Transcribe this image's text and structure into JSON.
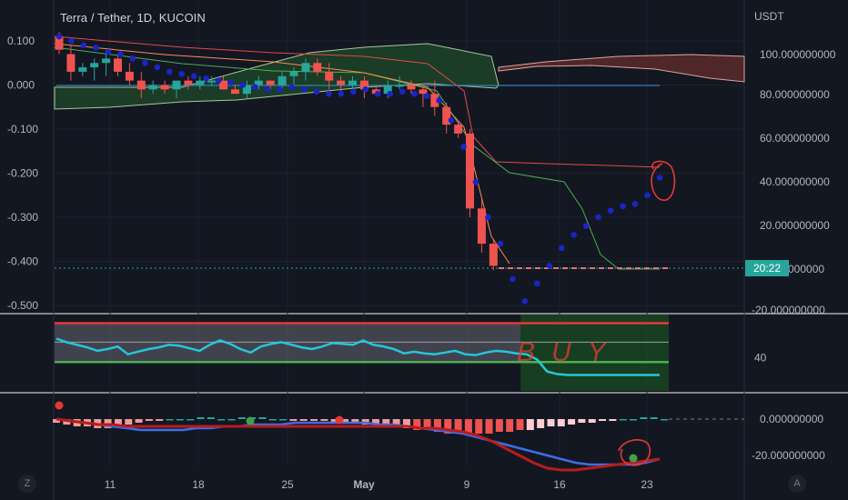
{
  "title": "Terra / Tether, 1D, KUCOIN",
  "currency": "USDT",
  "corner_left": "Z",
  "corner_right": "A",
  "last_label": "20:22",
  "buy_annotation": "BUY",
  "chart_data": [
    {
      "type": "candlestick",
      "title": "Terra / Tether, 1D, KUCOIN",
      "y_left_ticks": [
        "0.100",
        "0.000",
        "-0.100",
        "-0.200",
        "-0.300",
        "-0.400",
        "-0.500"
      ],
      "y_right_ticks": [
        "100.000000000",
        "80.000000000",
        "60.000000000",
        "40.000000000",
        "20.000000000",
        "-20.000000000"
      ],
      "x_ticks": [
        "11",
        "18",
        "25",
        "May",
        "9",
        "16",
        "23"
      ],
      "ohlc_left_scale": [
        [
          0.11,
          0.12,
          0.07,
          0.08
        ],
        [
          0.07,
          0.09,
          0.01,
          0.03
        ],
        [
          0.03,
          0.05,
          0.02,
          0.04
        ],
        [
          0.04,
          0.06,
          0.01,
          0.05
        ],
        [
          0.05,
          0.08,
          0.02,
          0.06
        ],
        [
          0.06,
          0.07,
          0.02,
          0.03
        ],
        [
          0.03,
          0.05,
          0.0,
          0.01
        ],
        [
          0.01,
          0.03,
          -0.03,
          -0.01
        ],
        [
          -0.01,
          0.01,
          -0.02,
          0.0
        ],
        [
          0.0,
          0.01,
          -0.02,
          -0.01
        ],
        [
          -0.01,
          0.01,
          -0.03,
          0.01
        ],
        [
          0.01,
          0.02,
          -0.01,
          0.0
        ],
        [
          0.0,
          0.02,
          -0.01,
          0.01
        ],
        [
          0.01,
          0.02,
          0.0,
          0.01
        ],
        [
          0.01,
          0.02,
          -0.01,
          -0.01
        ],
        [
          -0.01,
          0.0,
          -0.02,
          -0.02
        ],
        [
          -0.02,
          0.01,
          -0.03,
          0.0
        ],
        [
          0.0,
          0.02,
          -0.01,
          0.01
        ],
        [
          0.01,
          0.01,
          -0.01,
          0.0
        ],
        [
          0.0,
          0.03,
          -0.01,
          0.02
        ],
        [
          0.02,
          0.04,
          0.0,
          0.03
        ],
        [
          0.03,
          0.06,
          0.01,
          0.05
        ],
        [
          0.05,
          0.06,
          0.02,
          0.03
        ],
        [
          0.03,
          0.05,
          -0.01,
          0.01
        ],
        [
          0.01,
          0.02,
          -0.02,
          0.0
        ],
        [
          0.0,
          0.02,
          -0.02,
          0.01
        ],
        [
          0.01,
          0.02,
          -0.03,
          -0.01
        ],
        [
          -0.01,
          0.0,
          -0.02,
          -0.02
        ],
        [
          -0.02,
          0.01,
          -0.03,
          0.0
        ],
        [
          0.0,
          0.02,
          -0.01,
          0.0
        ],
        [
          0.0,
          0.01,
          -0.02,
          -0.01
        ],
        [
          -0.01,
          0.0,
          -0.05,
          -0.02
        ],
        [
          -0.02,
          0.01,
          -0.07,
          -0.05
        ],
        [
          -0.05,
          -0.04,
          -0.11,
          -0.09
        ],
        [
          -0.09,
          -0.08,
          -0.12,
          -0.11
        ],
        [
          -0.11,
          -0.1,
          -0.3,
          -0.28
        ],
        [
          -0.28,
          -0.26,
          -0.38,
          -0.36
        ],
        [
          -0.36,
          -0.35,
          -0.42,
          -0.41
        ]
      ],
      "psar_left_scale": [
        0.11,
        0.1,
        0.09,
        0.085,
        0.075,
        0.07,
        0.06,
        0.05,
        0.04,
        0.03,
        0.025,
        0.02,
        0.015,
        0.01,
        0.005,
        0.0,
        -0.005,
        -0.01,
        -0.01,
        -0.005,
        -0.01,
        -0.015,
        -0.02,
        -0.02,
        -0.015,
        -0.01,
        -0.02,
        -0.02,
        -0.015,
        -0.02,
        -0.025,
        -0.035,
        -0.08,
        -0.14,
        -0.22,
        -0.3,
        -0.36,
        -0.44,
        -0.49,
        -0.45,
        -0.41,
        -0.37,
        -0.34,
        -0.32,
        -0.3,
        -0.285,
        -0.275,
        -0.27,
        -0.25,
        -0.21
      ],
      "price_line_left_scale": -0.41
    },
    {
      "type": "line",
      "name_hint": "oscillator",
      "y_ticks": [
        "40"
      ],
      "bands": [
        80,
        35
      ],
      "values": [
        62,
        58,
        55,
        52,
        48,
        50,
        53,
        44,
        47,
        50,
        52,
        55,
        54,
        51,
        48,
        55,
        60,
        56,
        50,
        46,
        53,
        56,
        58,
        55,
        52,
        50,
        53,
        57,
        56,
        55,
        60,
        55,
        53,
        50,
        45,
        47,
        45,
        44,
        46,
        48,
        44,
        43,
        46,
        48,
        47,
        45,
        44,
        38,
        24,
        21,
        20,
        20,
        20,
        20,
        20,
        20,
        20,
        20,
        20,
        20
      ],
      "highlight_from_index": 45
    },
    {
      "type": "bar",
      "name_hint": "histogram",
      "y_ticks": [
        "0.000000000",
        "-20.000000000"
      ],
      "histogram": [
        -2,
        -3,
        -4,
        -4,
        -5,
        -5,
        -4,
        -3,
        -2,
        -1,
        -1,
        0,
        0,
        0,
        1,
        1,
        0,
        0,
        1,
        1,
        1,
        0,
        0,
        -1,
        -1,
        -1,
        -1,
        -2,
        -2,
        -2,
        -3,
        -3,
        -4,
        -4,
        -5,
        -6,
        -6,
        -7,
        -8,
        -8,
        -9,
        -8,
        -8,
        -7,
        -7,
        -6,
        -6,
        -5,
        -4,
        -4,
        -3,
        -2,
        -2,
        -1,
        -1,
        0,
        0,
        1,
        1,
        0
      ],
      "fast_line": [
        0,
        -1,
        -2,
        -3,
        -4,
        -5,
        -6,
        -6,
        -6,
        -6,
        -5,
        -5,
        -4,
        -4,
        -3,
        -3,
        -3,
        -2,
        -2,
        -2,
        -2,
        -2,
        -2,
        -3,
        -3,
        -4,
        -5,
        -6,
        -7,
        -8,
        -10,
        -12,
        -14,
        -16,
        -18,
        -20,
        -22,
        -24,
        -25,
        -25,
        -25,
        -25,
        -24,
        -22
      ],
      "slow_line": [
        0,
        -1,
        -2,
        -3,
        -3,
        -4,
        -4,
        -4,
        -4,
        -4,
        -4,
        -4,
        -4,
        -4,
        -4,
        -4,
        -4,
        -4,
        -4,
        -4,
        -4,
        -4,
        -4,
        -4,
        -4,
        -4,
        -5,
        -5,
        -6,
        -7,
        -9,
        -12,
        -16,
        -20,
        -24,
        -27,
        -28,
        -28,
        -27,
        -26,
        -25,
        -24,
        -23,
        -22
      ]
    }
  ]
}
